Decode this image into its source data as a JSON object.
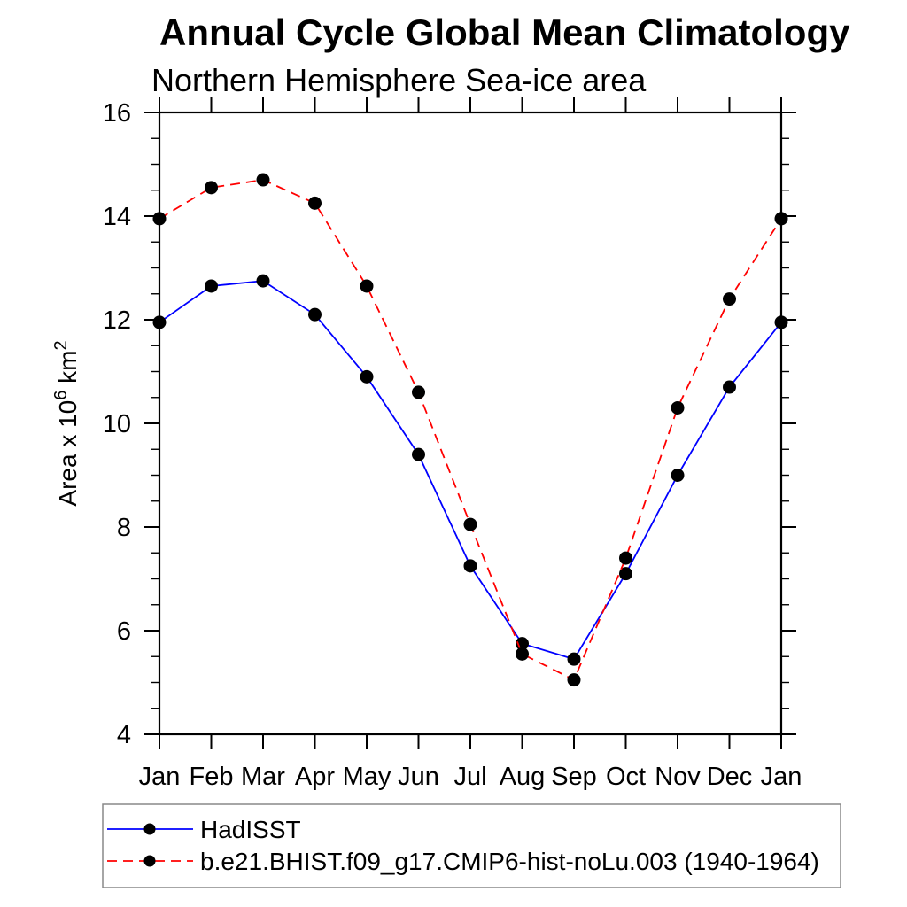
{
  "chart_data": {
    "type": "line",
    "title": "Annual Cycle Global Mean Climatology",
    "subtitle": "Northern Hemisphere Sea-ice area",
    "ylabel": "Area x 10^6 km^2",
    "ylabel_parts": [
      {
        "text": "Area x 10",
        "sup": false
      },
      {
        "text": "6",
        "sup": true
      },
      {
        "text": " km",
        "sup": false
      },
      {
        "text": "2",
        "sup": true
      }
    ],
    "categories": [
      "Jan",
      "Feb",
      "Mar",
      "Apr",
      "May",
      "Jun",
      "Jul",
      "Aug",
      "Sep",
      "Oct",
      "Nov",
      "Dec",
      "Jan"
    ],
    "series": [
      {
        "name": "HadISST",
        "color": "#0000ff",
        "line_style": "solid",
        "marker": "black-dot",
        "values": [
          11.95,
          12.65,
          12.75,
          12.1,
          10.9,
          9.4,
          7.25,
          5.75,
          5.45,
          7.1,
          9.0,
          10.7,
          11.95
        ]
      },
      {
        "name": "b.e21.BHIST.f09_g17.CMIP6-hist-noLu.003 (1940-1964)",
        "color": "#ff0000",
        "line_style": "dashed",
        "marker": "black-dot",
        "values": [
          13.95,
          14.55,
          14.7,
          14.25,
          12.65,
          10.6,
          8.05,
          5.55,
          5.05,
          7.4,
          10.3,
          12.4,
          13.95
        ]
      }
    ],
    "ylim": [
      4,
      16
    ],
    "yticks": [
      4,
      6,
      8,
      10,
      12,
      14,
      16
    ],
    "y_minor_step": 0.5,
    "grid": "off",
    "legend_position": "bottom",
    "marker_color": "#000000",
    "axis_color": "#000000",
    "legend_border_color": "#888888"
  }
}
